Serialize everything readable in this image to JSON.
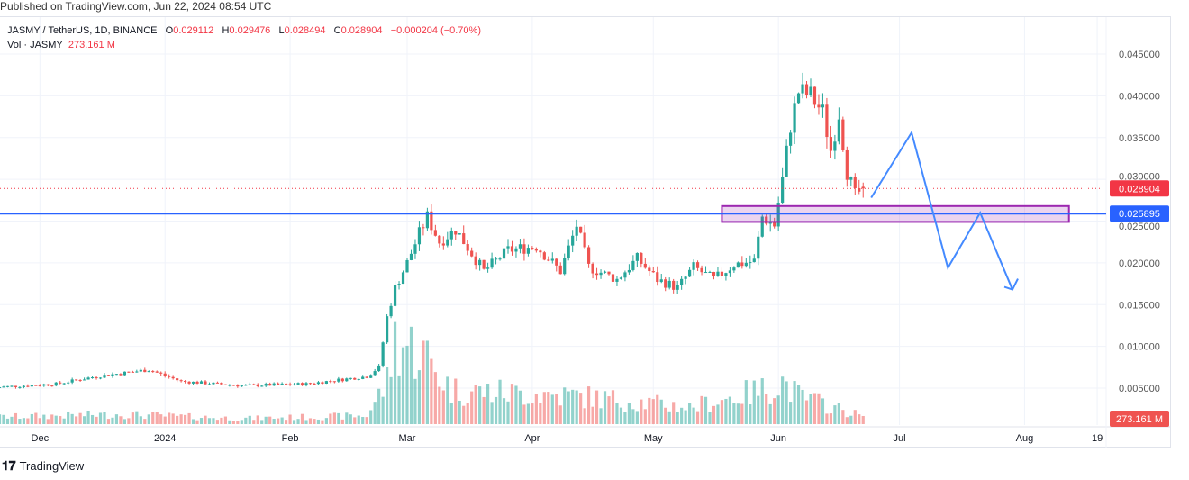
{
  "published": "Published on TradingView.com, Jun 22, 2024 08:54 UTC",
  "legend": {
    "symbol": "JASMY / TetherUS, 1D, BINANCE",
    "o_label": "O",
    "open": "0.029112",
    "h_label": "H",
    "high": "0.029476",
    "l_label": "L",
    "low": "0.028494",
    "c_label": "C",
    "close": "0.028904",
    "change": "−0.000204 (−0.70%)",
    "vol_label": "Vol · JASMY",
    "vol_value": "273.161 M"
  },
  "footer": {
    "brand": "TradingView"
  },
  "colors": {
    "up": "#26a69a",
    "down": "#ef5350",
    "hline": "#2962ff",
    "zone": "#9c27b0",
    "projection": "#448aff"
  },
  "chart_data": {
    "type": "candlestick",
    "symbol": "JASMYUSDT",
    "interval": "1D",
    "ylim": [
      0.0,
      0.0475
    ],
    "yticks": [
      "0.045000",
      "0.040000",
      "0.035000",
      "0.030000",
      "0.025000",
      "0.020000",
      "0.015000",
      "0.010000",
      "0.005000"
    ],
    "yticks_values": [
      0.045,
      0.04,
      0.035,
      0.03,
      0.025,
      0.02,
      0.015,
      0.01,
      0.005
    ],
    "xticks": [
      {
        "label": "Dec",
        "date": "2023-12-01"
      },
      {
        "label": "2024",
        "date": "2024-01-01"
      },
      {
        "label": "Feb",
        "date": "2024-02-01"
      },
      {
        "label": "Mar",
        "date": "2024-03-01"
      },
      {
        "label": "Apr",
        "date": "2024-04-01"
      },
      {
        "label": "May",
        "date": "2024-05-01"
      },
      {
        "label": "Jun",
        "date": "2024-06-01"
      },
      {
        "label": "Jul",
        "date": "2024-07-01"
      },
      {
        "label": "Aug",
        "date": "2024-08-01"
      },
      {
        "label": "19",
        "date": "2024-08-19"
      }
    ],
    "close_keypoints": [
      [
        "2023-11-20",
        0.0051
      ],
      [
        "2023-12-05",
        0.0055
      ],
      [
        "2023-12-15",
        0.0064
      ],
      [
        "2023-12-28",
        0.0072
      ],
      [
        "2024-01-05",
        0.0058
      ],
      [
        "2024-01-20",
        0.0053
      ],
      [
        "2024-02-05",
        0.0055
      ],
      [
        "2024-02-20",
        0.0064
      ],
      [
        "2024-02-23",
        0.0075
      ],
      [
        "2024-02-25",
        0.0135
      ],
      [
        "2024-02-27",
        0.017
      ],
      [
        "2024-03-01",
        0.02
      ],
      [
        "2024-03-04",
        0.0235
      ],
      [
        "2024-03-06",
        0.0255
      ],
      [
        "2024-03-09",
        0.0225
      ],
      [
        "2024-03-13",
        0.024
      ],
      [
        "2024-03-20",
        0.019
      ],
      [
        "2024-03-26",
        0.0215
      ],
      [
        "2024-04-02",
        0.022
      ],
      [
        "2024-04-08",
        0.019
      ],
      [
        "2024-04-12",
        0.0245
      ],
      [
        "2024-04-15",
        0.0195
      ],
      [
        "2024-04-22",
        0.018
      ],
      [
        "2024-04-27",
        0.0205
      ],
      [
        "2024-05-02",
        0.018
      ],
      [
        "2024-05-07",
        0.017
      ],
      [
        "2024-05-11",
        0.0195
      ],
      [
        "2024-05-16",
        0.018
      ],
      [
        "2024-05-21",
        0.0198
      ],
      [
        "2024-05-26",
        0.0202
      ],
      [
        "2024-05-28",
        0.0255
      ],
      [
        "2024-05-31",
        0.0245
      ],
      [
        "2024-06-02",
        0.03
      ],
      [
        "2024-06-04",
        0.0365
      ],
      [
        "2024-06-06",
        0.0405
      ],
      [
        "2024-06-09",
        0.04
      ],
      [
        "2024-06-12",
        0.038
      ],
      [
        "2024-06-14",
        0.0335
      ],
      [
        "2024-06-16",
        0.038
      ],
      [
        "2024-06-18",
        0.031
      ],
      [
        "2024-06-20",
        0.028
      ],
      [
        "2024-06-22",
        0.028904
      ]
    ],
    "volume_keypoints_millions": [
      [
        "2023-11-20",
        250
      ],
      [
        "2023-12-20",
        350
      ],
      [
        "2024-01-20",
        200
      ],
      [
        "2024-02-20",
        300
      ],
      [
        "2024-02-25",
        1500
      ],
      [
        "2024-02-27",
        3000
      ],
      [
        "2024-03-05",
        2500
      ],
      [
        "2024-03-12",
        1200
      ],
      [
        "2024-04-12",
        1000
      ],
      [
        "2024-05-10",
        600
      ],
      [
        "2024-05-28",
        1200
      ],
      [
        "2024-06-02",
        1500
      ],
      [
        "2024-06-06",
        1000
      ],
      [
        "2024-06-22",
        273.161
      ]
    ],
    "last_price_label": "0.028904",
    "horizontal_line": {
      "price": 0.025895,
      "label": "0.025895"
    },
    "zone": {
      "from": "2024-05-18",
      "to": "2024-08-12",
      "low": 0.0249,
      "high": 0.0268
    },
    "projection_path": [
      [
        "2024-06-24",
        0.0278
      ],
      [
        "2024-07-04",
        0.0356
      ],
      [
        "2024-07-13",
        0.0194
      ],
      [
        "2024-07-21",
        0.026
      ],
      [
        "2024-07-29",
        0.0168
      ]
    ],
    "volume_label": "273.161 M"
  }
}
